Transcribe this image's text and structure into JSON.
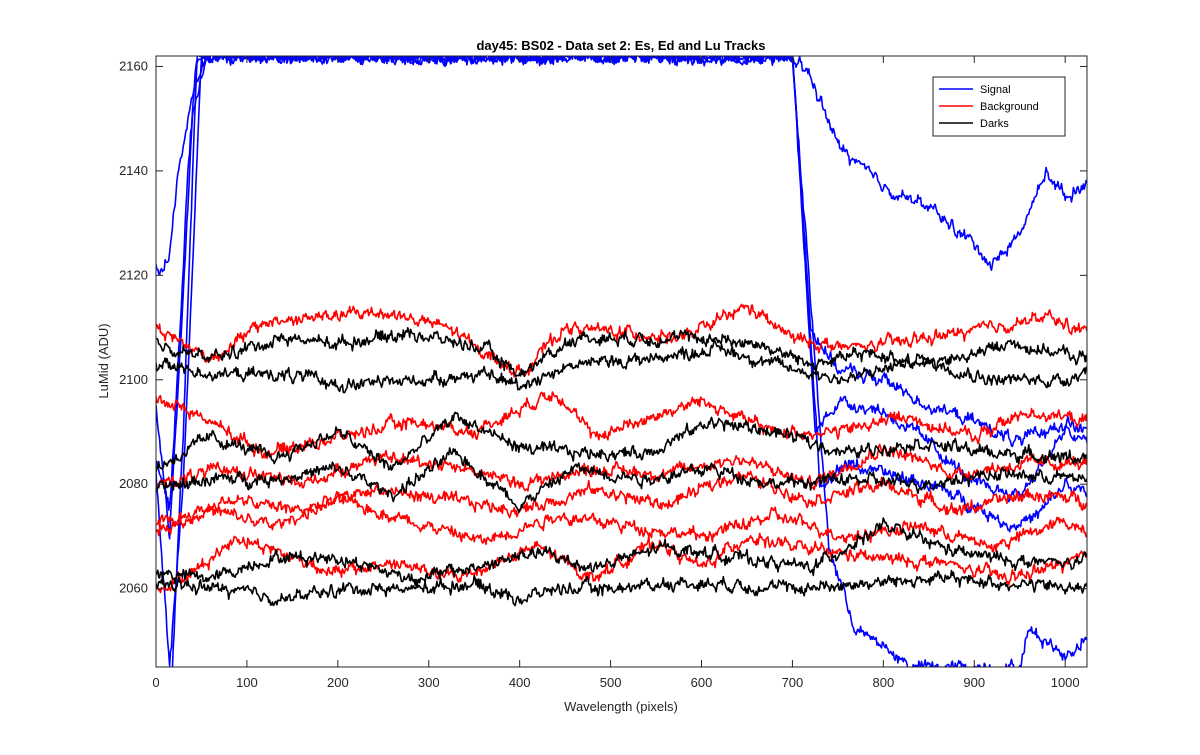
{
  "chart_data": {
    "type": "line",
    "title": "day45: BS02 - Data set 2: Es, Ed and Lu Tracks",
    "xlabel": "Wavelength (pixels)",
    "ylabel": "LuMid (ADU)",
    "xlim": [
      0,
      1024
    ],
    "ylim": [
      2045,
      2162
    ],
    "xticks": [
      0,
      100,
      200,
      300,
      400,
      500,
      600,
      700,
      800,
      900,
      1000
    ],
    "yticks": [
      2060,
      2080,
      2100,
      2120,
      2140,
      2160
    ],
    "grid": false,
    "legend_position": "top-right",
    "colors": {
      "Signal": "#0000ff",
      "Background": "#ff0000",
      "Darks": "#000000"
    },
    "legend": [
      "Signal",
      "Background",
      "Darks"
    ],
    "series": [
      {
        "name": "Signal",
        "color": "#0000ff",
        "x": [
          0,
          8,
          15,
          25,
          35,
          45,
          55,
          65,
          700,
          720,
          750,
          780,
          800,
          850,
          900,
          920,
          950,
          980,
          1000,
          1024
        ],
        "values": [
          2122,
          2120,
          2125,
          2140,
          2150,
          2158,
          2162,
          2162,
          2162,
          2158,
          2145,
          2140,
          2137,
          2133,
          2126,
          2122,
          2128,
          2140,
          2135,
          2138
        ]
      },
      {
        "name": "Signal",
        "color": "#0000ff",
        "x": [
          0,
          15,
          25,
          35,
          45,
          55,
          700,
          720,
          750,
          800,
          850,
          900,
          950,
          1000,
          1024
        ],
        "values": [
          2085,
          2075,
          2105,
          2140,
          2162,
          2162,
          2162,
          2110,
          2102,
          2100,
          2095,
          2092,
          2088,
          2092,
          2090
        ]
      },
      {
        "name": "Signal",
        "color": "#0000ff",
        "x": [
          0,
          15,
          25,
          40,
          55,
          700,
          725,
          750,
          800,
          850,
          900,
          950,
          1000,
          1024
        ],
        "values": [
          2095,
          2070,
          2100,
          2150,
          2162,
          2162,
          2090,
          2096,
          2094,
          2088,
          2080,
          2078,
          2090,
          2088
        ]
      },
      {
        "name": "Signal",
        "color": "#0000ff",
        "x": [
          0,
          15,
          30,
          50,
          700,
          730,
          760,
          800,
          850,
          900,
          940,
          970,
          1000,
          1024
        ],
        "values": [
          2082,
          2045,
          2080,
          2162,
          2162,
          2080,
          2084,
          2082,
          2080,
          2076,
          2072,
          2074,
          2080,
          2078
        ]
      },
      {
        "name": "Signal",
        "color": "#0000ff",
        "x": [
          18,
          30,
          45,
          65,
          700,
          740,
          770,
          800,
          830,
          950,
          960,
          980,
          1000,
          1024
        ],
        "values": [
          2045,
          2090,
          2162,
          2162,
          2162,
          2068,
          2052,
          2049,
          2045,
          2045,
          2052,
          2050,
          2047,
          2051
        ]
      },
      {
        "name": "Background",
        "color": "#ff0000",
        "x": [
          0,
          60,
          120,
          180,
          250,
          320,
          400,
          450,
          520,
          580,
          650,
          700,
          760,
          850,
          920,
          980,
          1024
        ],
        "values": [
          2110,
          2104,
          2111,
          2112,
          2113,
          2110,
          2101,
          2110,
          2109,
          2108,
          2114,
          2108,
          2106,
          2108,
          2110,
          2112,
          2109
        ]
      },
      {
        "name": "Background",
        "color": "#ff0000",
        "x": [
          0,
          60,
          120,
          200,
          280,
          350,
          440,
          480,
          530,
          600,
          680,
          750,
          820,
          900,
          960,
          1024
        ],
        "values": [
          2097,
          2092,
          2086,
          2089,
          2092,
          2090,
          2098,
          2089,
          2092,
          2096,
          2090,
          2090,
          2093,
          2089,
          2094,
          2092
        ]
      },
      {
        "name": "Background",
        "color": "#ff0000",
        "x": [
          0,
          80,
          160,
          240,
          320,
          400,
          480,
          560,
          640,
          720,
          800,
          880,
          960,
          1024
        ],
        "values": [
          2080,
          2083,
          2080,
          2085,
          2084,
          2080,
          2083,
          2082,
          2085,
          2080,
          2087,
          2082,
          2084,
          2084
        ]
      },
      {
        "name": "Background",
        "color": "#ff0000",
        "x": [
          0,
          80,
          160,
          240,
          320,
          400,
          480,
          560,
          640,
          720,
          800,
          880,
          960,
          1024
        ],
        "values": [
          2072,
          2077,
          2075,
          2079,
          2077,
          2075,
          2079,
          2076,
          2082,
          2077,
          2080,
          2075,
          2078,
          2077
        ]
      },
      {
        "name": "Background",
        "color": "#ff0000",
        "x": [
          0,
          60,
          130,
          200,
          280,
          360,
          440,
          520,
          600,
          680,
          760,
          840,
          920,
          1000,
          1024
        ],
        "values": [
          2071,
          2075,
          2072,
          2077,
          2073,
          2069,
          2074,
          2072,
          2070,
          2074,
          2070,
          2072,
          2068,
          2073,
          2071
        ]
      },
      {
        "name": "Background",
        "color": "#ff0000",
        "x": [
          0,
          40,
          90,
          150,
          200,
          260,
          330,
          420,
          480,
          550,
          600,
          650,
          700,
          780,
          860,
          940,
          1024
        ],
        "values": [
          2060,
          2063,
          2070,
          2066,
          2063,
          2065,
          2062,
          2068,
          2062,
          2069,
          2064,
          2070,
          2068,
          2066,
          2065,
          2062,
          2066
        ]
      },
      {
        "name": "Darks",
        "color": "#000000",
        "x": [
          0,
          60,
          140,
          200,
          280,
          360,
          400,
          460,
          540,
          600,
          660,
          720,
          780,
          860,
          940,
          1024
        ],
        "values": [
          2107,
          2104,
          2108,
          2107,
          2109,
          2106,
          2101,
          2108,
          2108,
          2108,
          2107,
          2103,
          2105,
          2103,
          2107,
          2104
        ]
      },
      {
        "name": "Darks",
        "color": "#000000",
        "x": [
          0,
          70,
          140,
          210,
          290,
          360,
          400,
          460,
          540,
          620,
          700,
          760,
          840,
          920,
          1000,
          1024
        ],
        "values": [
          2103,
          2101,
          2101,
          2099,
          2100,
          2101,
          2099,
          2103,
          2104,
          2106,
          2102,
          2100,
          2104,
          2100,
          2100,
          2102
        ]
      },
      {
        "name": "Darks",
        "color": "#000000",
        "x": [
          0,
          60,
          130,
          200,
          260,
          330,
          400,
          460,
          540,
          610,
          680,
          760,
          840,
          920,
          1024
        ],
        "values": [
          2083,
          2089,
          2085,
          2090,
          2083,
          2093,
          2087,
          2086,
          2086,
          2092,
          2090,
          2086,
          2088,
          2086,
          2085
        ]
      },
      {
        "name": "Darks",
        "color": "#000000",
        "x": [
          0,
          60,
          130,
          200,
          260,
          330,
          400,
          460,
          540,
          610,
          680,
          760,
          840,
          920,
          1024
        ],
        "values": [
          2079,
          2081,
          2081,
          2083,
          2078,
          2086,
          2076,
          2083,
          2081,
          2083,
          2080,
          2081,
          2080,
          2082,
          2081
        ]
      },
      {
        "name": "Darks",
        "color": "#000000",
        "x": [
          0,
          60,
          130,
          200,
          280,
          350,
          420,
          480,
          560,
          640,
          720,
          800,
          880,
          960,
          1024
        ],
        "values": [
          2063,
          2062,
          2066,
          2066,
          2062,
          2064,
          2067,
          2064,
          2068,
          2066,
          2064,
          2072,
          2067,
          2065,
          2065
        ]
      },
      {
        "name": "Darks",
        "color": "#000000",
        "x": [
          0,
          70,
          140,
          210,
          280,
          350,
          400,
          440,
          500,
          560,
          620,
          700,
          780,
          860,
          940,
          1024
        ],
        "values": [
          2061,
          2060,
          2058,
          2060,
          2060,
          2061,
          2058,
          2060,
          2060,
          2061,
          2061,
          2060,
          2061,
          2062,
          2061,
          2060
        ]
      }
    ]
  }
}
